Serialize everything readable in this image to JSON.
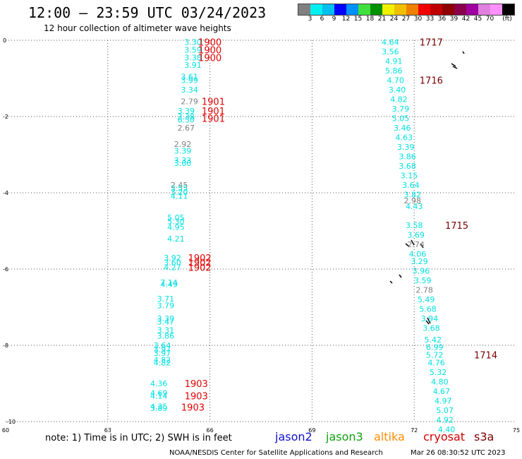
{
  "title": "12:00 – 23:59 UTC 03/24/2023",
  "subtitle": "12 hour collection of altimeter wave heights",
  "note": "note: 1) Time is in UTC; 2) SWH is in feet",
  "credit_left": "NOAA/NESDIS Center for Satellite Applications and Research",
  "credit_right": "Mar 26 08:30:52 UTC 2023",
  "satellites": [
    {
      "name": "jason2",
      "color": "#1010d0"
    },
    {
      "name": "jason3",
      "color": "#10a010"
    },
    {
      "name": "altika",
      "color": "#ff8c00"
    },
    {
      "name": "cryosat",
      "color": "#d00000"
    },
    {
      "name": "s3a",
      "color": "#7a0000"
    }
  ],
  "colorbar": {
    "colors": [
      "#808080",
      "#00f0f0",
      "#00c0f0",
      "#0000ff",
      "#0090ff",
      "#40e040",
      "#009000",
      "#f0f000",
      "#f0c000",
      "#f08000",
      "#f00000",
      "#c00000",
      "#900000",
      "#8b004b",
      "#a000a0",
      "#e080e0",
      "#ff90ff",
      "#000000"
    ],
    "labels": [
      "3",
      "6",
      "9",
      "12",
      "15",
      "18",
      "21",
      "24",
      "27",
      "30",
      "33",
      "36",
      "39",
      "42",
      "45",
      "70"
    ],
    "unit": "(ft)"
  },
  "chart_data": {
    "type": "scatter",
    "title": "12:00 – 23:59 UTC 03/24/2023",
    "xlim": [
      60,
      75
    ],
    "ylim": [
      -10,
      0
    ],
    "x_ticks": [
      60,
      63,
      66,
      69,
      72,
      75
    ],
    "y_ticks": [
      0,
      -2,
      -4,
      -6,
      -8,
      -10
    ],
    "grid": true,
    "series": [
      {
        "name": "swh",
        "points": [
          {
            "x": 65.5,
            "y": -0.05,
            "label": "3.30",
            "color": "#00e0e0"
          },
          {
            "x": 65.5,
            "y": -0.25,
            "label": "3.59",
            "color": "#00e0e0"
          },
          {
            "x": 65.5,
            "y": -0.45,
            "label": "3.38",
            "color": "#00e0e0"
          },
          {
            "x": 65.5,
            "y": -0.65,
            "label": "3.91",
            "color": "#00e0e0"
          },
          {
            "x": 65.4,
            "y": -0.95,
            "label": "3.61",
            "color": "#00e0e0"
          },
          {
            "x": 65.4,
            "y": -1.05,
            "label": "3.99",
            "color": "#00e0e0"
          },
          {
            "x": 65.4,
            "y": -1.3,
            "label": "3.34",
            "color": "#00e0e0"
          },
          {
            "x": 65.4,
            "y": -1.6,
            "label": "2.79",
            "color": "#808080"
          },
          {
            "x": 65.3,
            "y": -1.85,
            "label": "3.39",
            "color": "#00e0e0"
          },
          {
            "x": 65.3,
            "y": -2.0,
            "label": "3.38",
            "color": "#00e0e0"
          },
          {
            "x": 65.3,
            "y": -2.08,
            "label": "6.50",
            "color": "#00e0e0"
          },
          {
            "x": 65.3,
            "y": -2.3,
            "label": "2.67",
            "color": "#808080"
          },
          {
            "x": 65.2,
            "y": -2.72,
            "label": "2.92",
            "color": "#808080"
          },
          {
            "x": 65.2,
            "y": -2.9,
            "label": "3.39",
            "color": "#00e0e0"
          },
          {
            "x": 65.2,
            "y": -3.15,
            "label": "3.33",
            "color": "#00e0e0"
          },
          {
            "x": 65.2,
            "y": -3.22,
            "label": "3.00",
            "color": "#00e0e0"
          },
          {
            "x": 65.1,
            "y": -3.8,
            "label": "2.45",
            "color": "#808080"
          },
          {
            "x": 65.1,
            "y": -3.88,
            "label": "3.55",
            "color": "#00e0e0"
          },
          {
            "x": 65.1,
            "y": -3.98,
            "label": "3.20",
            "color": "#00e0e0"
          },
          {
            "x": 65.1,
            "y": -4.08,
            "label": "4.11",
            "color": "#00e0e0"
          },
          {
            "x": 65.0,
            "y": -4.65,
            "label": "5.05",
            "color": "#00e0e0"
          },
          {
            "x": 65.0,
            "y": -4.75,
            "label": "5.30",
            "color": "#00e0e0"
          },
          {
            "x": 65.0,
            "y": -4.9,
            "label": "4.95",
            "color": "#00e0e0"
          },
          {
            "x": 65.0,
            "y": -5.2,
            "label": "4.21",
            "color": "#00e0e0"
          },
          {
            "x": 64.9,
            "y": -5.7,
            "label": "3.92",
            "color": "#00e0e0"
          },
          {
            "x": 64.9,
            "y": -5.82,
            "label": "3.60",
            "color": "#00e0e0"
          },
          {
            "x": 64.9,
            "y": -5.95,
            "label": "4.27",
            "color": "#00e0e0"
          },
          {
            "x": 64.8,
            "y": -6.35,
            "label": "7.14",
            "color": "#00e0e0"
          },
          {
            "x": 64.8,
            "y": -6.4,
            "label": "4.49",
            "color": "#00e0e0"
          },
          {
            "x": 64.7,
            "y": -6.78,
            "label": "3.71",
            "color": "#00e0e0"
          },
          {
            "x": 64.7,
            "y": -6.95,
            "label": "3.79",
            "color": "#00e0e0"
          },
          {
            "x": 64.7,
            "y": -7.3,
            "label": "3.39",
            "color": "#00e0e0"
          },
          {
            "x": 64.7,
            "y": -7.38,
            "label": "3.47",
            "color": "#00e0e0"
          },
          {
            "x": 64.7,
            "y": -7.6,
            "label": "3.31",
            "color": "#00e0e0"
          },
          {
            "x": 64.7,
            "y": -7.75,
            "label": "3.86",
            "color": "#00e0e0"
          },
          {
            "x": 64.6,
            "y": -8.0,
            "label": "3.64",
            "color": "#00e0e0"
          },
          {
            "x": 64.6,
            "y": -8.1,
            "label": "3.97",
            "color": "#00e0e0"
          },
          {
            "x": 64.6,
            "y": -8.2,
            "label": "3.97",
            "color": "#00e0e0"
          },
          {
            "x": 64.6,
            "y": -8.38,
            "label": "4.82",
            "color": "#00e0e0"
          },
          {
            "x": 64.6,
            "y": -8.45,
            "label": "4.82",
            "color": "#00e0e0"
          },
          {
            "x": 64.5,
            "y": -9.0,
            "label": "4.36",
            "color": "#00e0e0"
          },
          {
            "x": 64.5,
            "y": -9.25,
            "label": "4.69",
            "color": "#00e0e0"
          },
          {
            "x": 64.5,
            "y": -9.32,
            "label": "4.14",
            "color": "#00e0e0"
          },
          {
            "x": 64.5,
            "y": -9.6,
            "label": "4.35",
            "color": "#00e0e0"
          },
          {
            "x": 64.5,
            "y": -9.65,
            "label": "3.89",
            "color": "#00e0e0"
          },
          {
            "x": 71.3,
            "y": -0.05,
            "label": "4.64",
            "color": "#00e0e0"
          },
          {
            "x": 71.3,
            "y": -0.3,
            "label": "3.56",
            "color": "#00e0e0"
          },
          {
            "x": 71.4,
            "y": -0.55,
            "label": "4.91",
            "color": "#00e0e0"
          },
          {
            "x": 71.4,
            "y": -0.8,
            "label": "5.86",
            "color": "#00e0e0"
          },
          {
            "x": 71.45,
            "y": -1.05,
            "label": "4.70",
            "color": "#00e0e0"
          },
          {
            "x": 71.5,
            "y": -1.3,
            "label": "3.40",
            "color": "#00e0e0"
          },
          {
            "x": 71.55,
            "y": -1.55,
            "label": "4.82",
            "color": "#00e0e0"
          },
          {
            "x": 71.6,
            "y": -1.8,
            "label": "3.79",
            "color": "#00e0e0"
          },
          {
            "x": 71.6,
            "y": -2.05,
            "label": "5.05",
            "color": "#00e0e0"
          },
          {
            "x": 71.65,
            "y": -2.3,
            "label": "3.46",
            "color": "#00e0e0"
          },
          {
            "x": 71.7,
            "y": -2.55,
            "label": "4.63",
            "color": "#00e0e0"
          },
          {
            "x": 71.75,
            "y": -2.8,
            "label": "3.39",
            "color": "#00e0e0"
          },
          {
            "x": 71.8,
            "y": -3.05,
            "label": "3.86",
            "color": "#00e0e0"
          },
          {
            "x": 71.8,
            "y": -3.3,
            "label": "3.68",
            "color": "#00e0e0"
          },
          {
            "x": 71.85,
            "y": -3.55,
            "label": "3.15",
            "color": "#00e0e0"
          },
          {
            "x": 71.9,
            "y": -3.8,
            "label": "3.64",
            "color": "#00e0e0"
          },
          {
            "x": 71.95,
            "y": -4.05,
            "label": "3.82",
            "color": "#00e0e0"
          },
          {
            "x": 71.95,
            "y": -4.2,
            "label": "2.98",
            "color": "#808080"
          },
          {
            "x": 72.0,
            "y": -4.35,
            "label": "4.43",
            "color": "#00e0e0"
          },
          {
            "x": 72.0,
            "y": -4.85,
            "label": "3.58",
            "color": "#00e0e0"
          },
          {
            "x": 72.05,
            "y": -5.1,
            "label": "3.69",
            "color": "#00e0e0"
          },
          {
            "x": 72.05,
            "y": -5.35,
            "label": "2.74",
            "color": "#808080"
          },
          {
            "x": 72.1,
            "y": -5.6,
            "label": "4.06",
            "color": "#00e0e0"
          },
          {
            "x": 72.15,
            "y": -5.8,
            "label": "3.29",
            "color": "#00e0e0"
          },
          {
            "x": 72.2,
            "y": -6.05,
            "label": "3.96",
            "color": "#00e0e0"
          },
          {
            "x": 72.25,
            "y": -6.3,
            "label": "3.59",
            "color": "#00e0e0"
          },
          {
            "x": 72.3,
            "y": -6.55,
            "label": "2.78",
            "color": "#808080"
          },
          {
            "x": 72.35,
            "y": -6.8,
            "label": "5.49",
            "color": "#00e0e0"
          },
          {
            "x": 72.4,
            "y": -7.05,
            "label": "5.68",
            "color": "#00e0e0"
          },
          {
            "x": 72.45,
            "y": -7.3,
            "label": "3.94",
            "color": "#00e0e0"
          },
          {
            "x": 72.5,
            "y": -7.55,
            "label": "3.68",
            "color": "#00e0e0"
          },
          {
            "x": 72.55,
            "y": -7.85,
            "label": "5.42",
            "color": "#00e0e0"
          },
          {
            "x": 72.6,
            "y": -8.05,
            "label": "6.99",
            "color": "#00e0e0"
          },
          {
            "x": 72.6,
            "y": -8.25,
            "label": "5.72",
            "color": "#00e0e0"
          },
          {
            "x": 72.65,
            "y": -8.45,
            "label": "4.76",
            "color": "#00e0e0"
          },
          {
            "x": 72.7,
            "y": -8.7,
            "label": "5.32",
            "color": "#00e0e0"
          },
          {
            "x": 72.75,
            "y": -8.95,
            "label": "4.80",
            "color": "#00e0e0"
          },
          {
            "x": 72.8,
            "y": -9.2,
            "label": "4.67",
            "color": "#00e0e0"
          },
          {
            "x": 72.85,
            "y": -9.45,
            "label": "4.97",
            "color": "#00e0e0"
          },
          {
            "x": 72.9,
            "y": -9.7,
            "label": "5.07",
            "color": "#00e0e0"
          },
          {
            "x": 72.9,
            "y": -9.95,
            "label": "4.92",
            "color": "#00e0e0"
          },
          {
            "x": 72.95,
            "y": -10.2,
            "label": "4.40",
            "color": "#00e0e0"
          }
        ]
      }
    ],
    "time_labels": [
      {
        "x": 66.0,
        "y": -0.05,
        "label": "1900",
        "color": "#e00000"
      },
      {
        "x": 66.0,
        "y": -0.25,
        "label": "1900",
        "color": "#e00000"
      },
      {
        "x": 66.0,
        "y": -0.45,
        "label": "1900",
        "color": "#e00000"
      },
      {
        "x": 66.1,
        "y": -1.6,
        "label": "1901",
        "color": "#e00000"
      },
      {
        "x": 66.1,
        "y": -1.85,
        "label": "1901",
        "color": "#e00000"
      },
      {
        "x": 66.1,
        "y": -2.05,
        "label": "1901",
        "color": "#e00000"
      },
      {
        "x": 65.7,
        "y": -5.7,
        "label": "1902",
        "color": "#e00000"
      },
      {
        "x": 65.7,
        "y": -5.82,
        "label": "1902",
        "color": "#e00000"
      },
      {
        "x": 65.7,
        "y": -5.95,
        "label": "1902",
        "color": "#e00000"
      },
      {
        "x": 65.6,
        "y": -9.0,
        "label": "1903",
        "color": "#e00000"
      },
      {
        "x": 65.6,
        "y": -9.32,
        "label": "1903",
        "color": "#e00000"
      },
      {
        "x": 65.5,
        "y": -9.62,
        "label": "1903",
        "color": "#e00000"
      },
      {
        "x": 72.5,
        "y": -0.05,
        "label": "1717",
        "color": "#7a0000"
      },
      {
        "x": 72.5,
        "y": -1.05,
        "label": "1716",
        "color": "#7a0000"
      },
      {
        "x": 73.25,
        "y": -4.85,
        "label": "1715",
        "color": "#7a0000"
      },
      {
        "x": 74.1,
        "y": -8.25,
        "label": "1714",
        "color": "#7a0000"
      }
    ]
  }
}
